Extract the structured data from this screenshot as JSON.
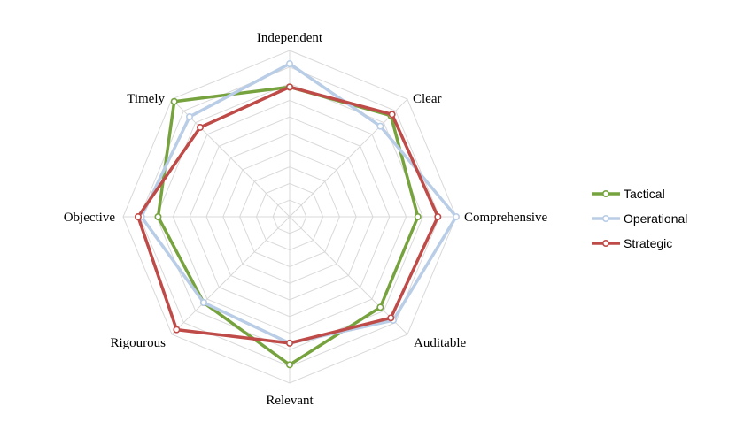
{
  "chart_data": {
    "type": "radar",
    "axes": [
      "Independent",
      "Clear",
      "Comprehensive",
      "Auditable",
      "Relevant",
      "Rigourous",
      "Objective",
      "Timely"
    ],
    "rlim": [
      0,
      10
    ],
    "grid": true,
    "legend_position": "right",
    "series": [
      {
        "name": "Tactical",
        "color": "#77a33f",
        "values": [
          7.8,
          8.6,
          7.7,
          7.7,
          8.9,
          7.3,
          7.9,
          9.8
        ]
      },
      {
        "name": "Operational",
        "color": "#b9cde6",
        "values": [
          9.2,
          7.7,
          10.0,
          8.8,
          7.6,
          7.3,
          8.9,
          8.5
        ]
      },
      {
        "name": "Strategic",
        "color": "#be4b48",
        "values": [
          7.8,
          8.7,
          8.9,
          8.6,
          7.6,
          9.6,
          9.1,
          7.6
        ]
      }
    ]
  }
}
